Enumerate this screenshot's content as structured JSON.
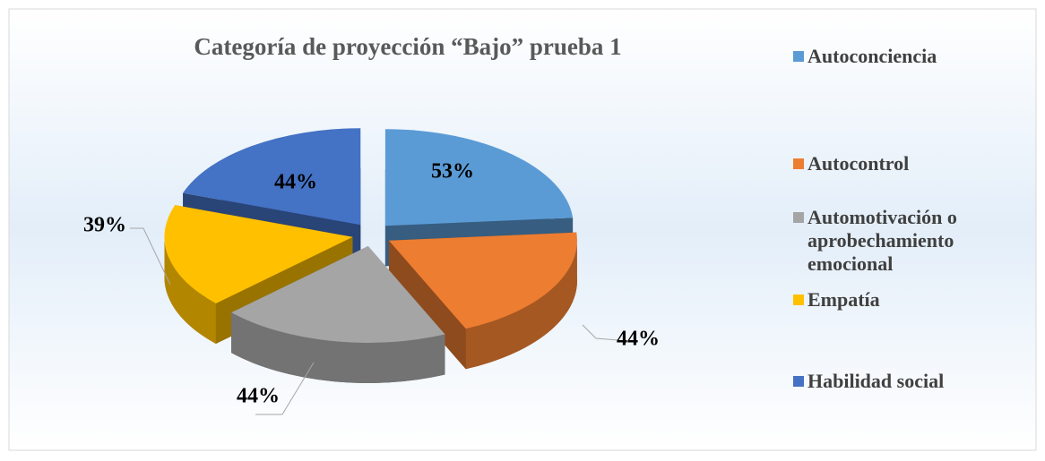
{
  "chart_data": {
    "type": "pie",
    "title": "Categoría de proyección “Bajo” prueba 1",
    "categories": [
      "Autoconciencia",
      "Autocontrol",
      "Automotivación o aprobechamiento emocional",
      "Empatía",
      "Habilidad social"
    ],
    "values": [
      53,
      44,
      44,
      39,
      44
    ],
    "value_labels": [
      "53%",
      "44%",
      "44%",
      "39%",
      "44%"
    ],
    "colors": [
      "#5b9bd5",
      "#ed7d31",
      "#a5a5a5",
      "#ffc000",
      "#4472c4"
    ],
    "legend": "right"
  }
}
